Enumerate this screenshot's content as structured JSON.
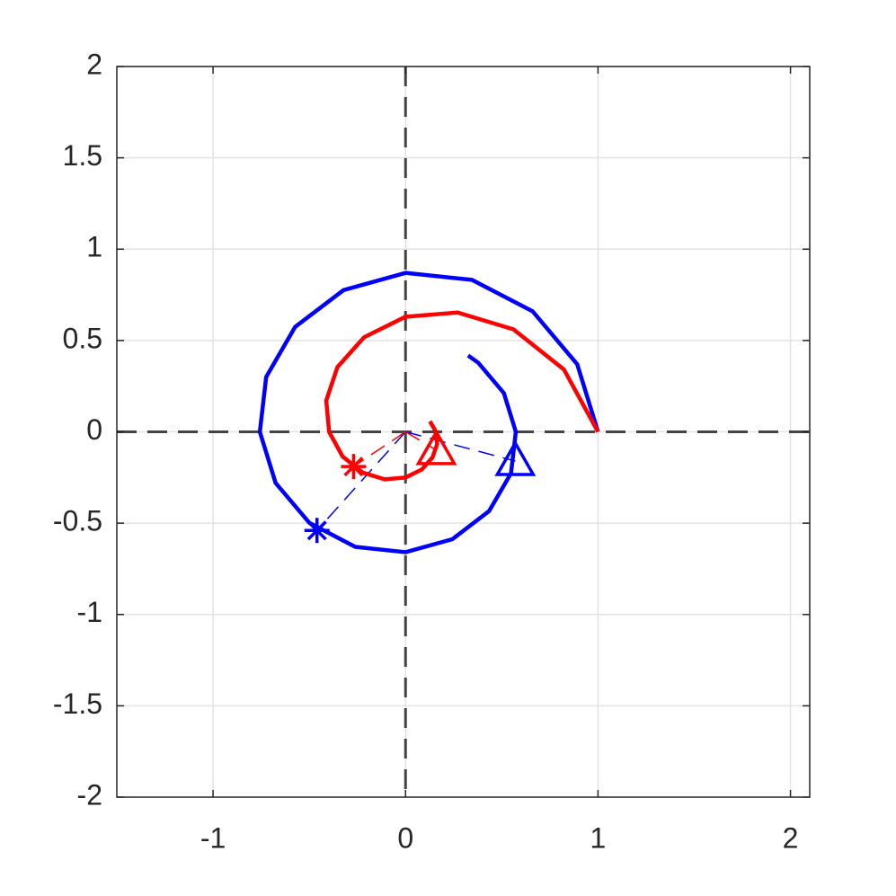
{
  "chart_data": {
    "type": "line",
    "xlim": [
      -1.5,
      2.1
    ],
    "ylim": [
      -2,
      2
    ],
    "xticks": [
      -1,
      0,
      1,
      2
    ],
    "yticks": [
      -2,
      -1.5,
      -1,
      -0.5,
      0,
      0.5,
      1,
      1.5,
      2
    ],
    "grid": true,
    "zero_lines": true,
    "series": [
      {
        "color": "#0000ff",
        "x": [
          1,
          0.892,
          0.66,
          0.345,
          0,
          -0.322,
          -0.574,
          -0.724,
          -0.757,
          -0.675,
          -0.499,
          -0.261,
          0,
          0.243,
          0.434,
          0.548,
          0.573,
          0.511,
          0.378,
          0.325
        ],
        "y": [
          0,
          0.37,
          0.66,
          0.832,
          0.87,
          0.776,
          0.574,
          0.3,
          0,
          -0.28,
          -0.499,
          -0.63,
          -0.659,
          -0.588,
          -0.434,
          -0.227,
          0,
          0.212,
          0.378,
          0.418
        ]
      },
      {
        "color": "#ff0000",
        "x": [
          1,
          0.823,
          0.561,
          0.271,
          0,
          -0.215,
          -0.354,
          -0.412,
          -0.397,
          -0.327,
          -0.223,
          -0.108,
          0,
          0.085,
          0.14,
          0.164,
          0.158,
          0.127
        ],
        "y": [
          0,
          0.341,
          0.561,
          0.653,
          0.63,
          0.518,
          0.354,
          0.171,
          0,
          -0.135,
          -0.223,
          -0.26,
          -0.25,
          -0.206,
          -0.14,
          -0.068,
          0,
          0.058
        ]
      }
    ],
    "markers": [
      {
        "color": "#0000ff",
        "marker": "asterisk",
        "x": -0.46,
        "y": -0.54
      },
      {
        "color": "#0000ff",
        "marker": "triangle",
        "x": 0.57,
        "y": -0.16
      },
      {
        "color": "#ff0000",
        "marker": "asterisk",
        "x": -0.27,
        "y": -0.19
      },
      {
        "color": "#ff0000",
        "marker": "triangle",
        "x": 0.16,
        "y": -0.1
      }
    ]
  }
}
